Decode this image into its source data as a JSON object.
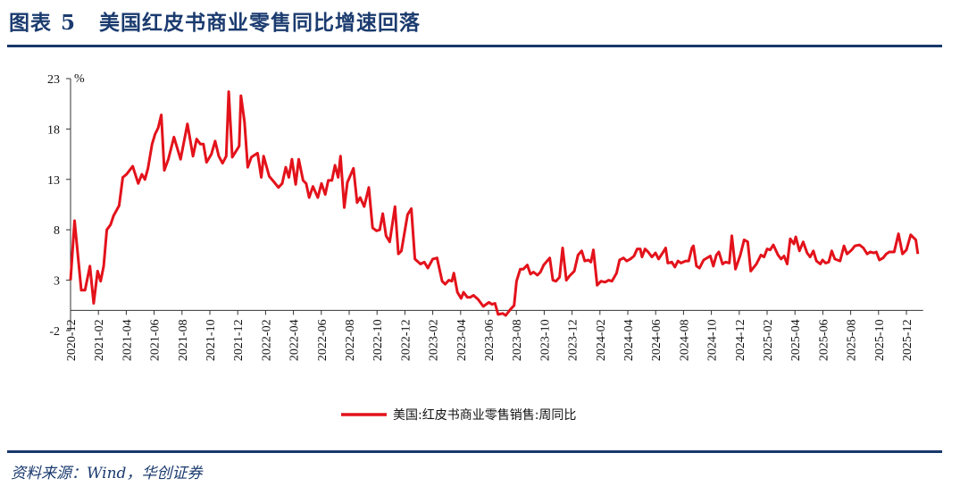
{
  "header": {
    "label": "图表",
    "number": "5",
    "title": "美国红皮书商业零售同比增速回落"
  },
  "source": "资料来源：Wind，华创证券",
  "chart_data": {
    "type": "line",
    "title": "美国红皮书商业零售同比增速回落",
    "ylabel": "%",
    "xlabel": "",
    "ylim": [
      -2,
      23
    ],
    "yticks": [
      "23",
      "18",
      "13",
      "8",
      "3",
      "-2"
    ],
    "ytick_values": [
      23,
      18,
      13,
      8,
      3,
      -2
    ],
    "xticks": [
      "2020-12",
      "2021-02",
      "2021-04",
      "2021-06",
      "2021-08",
      "2021-10",
      "2021-12",
      "2022-02",
      "2022-04",
      "2022-06",
      "2022-08",
      "2022-10",
      "2022-12",
      "2023-02",
      "2023-04",
      "2023-06",
      "2023-08",
      "2023-10",
      "2023-12",
      "2024-02",
      "2024-04",
      "2024-06",
      "2024-08",
      "2024-10",
      "2024-12",
      "2025-02",
      "2025-04",
      "2025-06",
      "2025-08",
      "2025-10",
      "2025-12"
    ],
    "x_unit": "months since 2020-12",
    "legend": "bottom",
    "color": "#e3121b",
    "series": [
      {
        "name": "美国:红皮书商业零售销售:周同比",
        "points": [
          [
            0,
            3.0
          ],
          [
            0.29,
            8.9
          ],
          [
            0.77,
            2.0
          ],
          [
            1.04,
            2.0
          ],
          [
            1.39,
            4.4
          ],
          [
            1.66,
            0.7
          ],
          [
            1.94,
            3.9
          ],
          [
            2.16,
            2.9
          ],
          [
            2.38,
            4.4
          ],
          [
            2.6,
            8.0
          ],
          [
            2.87,
            8.5
          ],
          [
            3.09,
            9.4
          ],
          [
            3.49,
            10.4
          ],
          [
            3.75,
            13.2
          ],
          [
            4.02,
            13.5
          ],
          [
            4.46,
            14.3
          ],
          [
            4.86,
            12.6
          ],
          [
            5.12,
            13.5
          ],
          [
            5.34,
            13.0
          ],
          [
            5.56,
            14.1
          ],
          [
            5.85,
            16.5
          ],
          [
            6.07,
            17.5
          ],
          [
            6.29,
            18.1
          ],
          [
            6.51,
            19.4
          ],
          [
            6.73,
            13.9
          ],
          [
            7.02,
            15.0
          ],
          [
            7.42,
            17.2
          ],
          [
            7.9,
            15.0
          ],
          [
            8.39,
            18.5
          ],
          [
            8.79,
            15.3
          ],
          [
            9.05,
            17.0
          ],
          [
            9.32,
            16.5
          ],
          [
            9.54,
            16.5
          ],
          [
            9.76,
            14.7
          ],
          [
            10.11,
            15.5
          ],
          [
            10.38,
            16.8
          ],
          [
            10.64,
            15.3
          ],
          [
            10.91,
            14.6
          ],
          [
            11.17,
            15.3
          ],
          [
            11.35,
            21.7
          ],
          [
            11.61,
            15.2
          ],
          [
            12.1,
            16.3
          ],
          [
            12.23,
            21.3
          ],
          [
            12.49,
            18.7
          ],
          [
            12.72,
            14.2
          ],
          [
            12.98,
            15.2
          ],
          [
            13.42,
            15.6
          ],
          [
            13.69,
            13.2
          ],
          [
            13.86,
            15.3
          ],
          [
            14.26,
            13.3
          ],
          [
            14.57,
            12.8
          ],
          [
            14.92,
            12.2
          ],
          [
            15.19,
            12.6
          ],
          [
            15.45,
            14.2
          ],
          [
            15.67,
            13.2
          ],
          [
            15.89,
            15.0
          ],
          [
            16.16,
            12.5
          ],
          [
            16.38,
            15.0
          ],
          [
            16.69,
            12.9
          ],
          [
            16.91,
            12.6
          ],
          [
            17.13,
            11.2
          ],
          [
            17.4,
            12.3
          ],
          [
            17.75,
            11.2
          ],
          [
            18.01,
            12.6
          ],
          [
            18.28,
            11.5
          ],
          [
            18.5,
            12.9
          ],
          [
            18.76,
            12.9
          ],
          [
            18.98,
            14.4
          ],
          [
            19.21,
            13.2
          ],
          [
            19.38,
            15.3
          ],
          [
            19.65,
            10.2
          ],
          [
            19.87,
            12.7
          ],
          [
            20.31,
            14.1
          ],
          [
            20.57,
            10.7
          ],
          [
            20.79,
            11.2
          ],
          [
            21.08,
            10.3
          ],
          [
            21.41,
            12.2
          ],
          [
            21.68,
            8.2
          ],
          [
            21.96,
            7.9
          ],
          [
            22.19,
            8.0
          ],
          [
            22.41,
            9.6
          ],
          [
            22.65,
            7.4
          ],
          [
            22.91,
            6.8
          ],
          [
            23.29,
            10.3
          ],
          [
            23.53,
            5.6
          ],
          [
            23.75,
            5.9
          ],
          [
            24.19,
            9.5
          ],
          [
            24.46,
            10.1
          ],
          [
            24.72,
            5.1
          ],
          [
            25.12,
            4.6
          ],
          [
            25.39,
            4.8
          ],
          [
            25.65,
            4.2
          ],
          [
            26.0,
            5.1
          ],
          [
            26.31,
            5.2
          ],
          [
            26.67,
            2.9
          ],
          [
            26.89,
            2.6
          ],
          [
            27.15,
            3.0
          ],
          [
            27.37,
            2.9
          ],
          [
            27.51,
            3.7
          ],
          [
            27.77,
            1.8
          ],
          [
            28.04,
            1.2
          ],
          [
            28.21,
            1.8
          ],
          [
            28.48,
            1.3
          ],
          [
            28.7,
            1.3
          ],
          [
            28.92,
            1.5
          ],
          [
            29.25,
            1.1
          ],
          [
            29.63,
            0.4
          ],
          [
            30.03,
            0.8
          ],
          [
            30.25,
            0.6
          ],
          [
            30.47,
            0.7
          ],
          [
            30.69,
            -0.4
          ],
          [
            31.02,
            -0.3
          ],
          [
            31.24,
            -0.5
          ],
          [
            31.57,
            0.1
          ],
          [
            31.84,
            0.5
          ],
          [
            32.01,
            2.9
          ],
          [
            32.28,
            4.1
          ],
          [
            32.5,
            4.1
          ],
          [
            32.79,
            4.5
          ],
          [
            33.01,
            3.6
          ],
          [
            33.23,
            3.8
          ],
          [
            33.51,
            3.5
          ],
          [
            33.73,
            3.8
          ],
          [
            33.96,
            4.5
          ],
          [
            34.4,
            5.2
          ],
          [
            34.62,
            3.0
          ],
          [
            34.84,
            2.9
          ],
          [
            35.1,
            3.3
          ],
          [
            35.32,
            6.2
          ],
          [
            35.59,
            3.0
          ],
          [
            35.81,
            3.4
          ],
          [
            36.16,
            3.9
          ],
          [
            36.43,
            5.5
          ],
          [
            36.69,
            5.9
          ],
          [
            36.91,
            4.9
          ],
          [
            37.18,
            5.0
          ],
          [
            37.35,
            4.8
          ],
          [
            37.53,
            6.0
          ],
          [
            37.8,
            2.5
          ],
          [
            38.08,
            2.9
          ],
          [
            38.37,
            2.8
          ],
          [
            38.63,
            3.0
          ],
          [
            38.86,
            2.9
          ],
          [
            39.19,
            3.7
          ],
          [
            39.41,
            5.0
          ],
          [
            39.69,
            5.2
          ],
          [
            39.92,
            4.9
          ],
          [
            40.18,
            5.1
          ],
          [
            40.45,
            5.4
          ],
          [
            40.67,
            6.1
          ],
          [
            40.89,
            6.1
          ],
          [
            41.02,
            5.3
          ],
          [
            41.24,
            6.1
          ],
          [
            41.46,
            5.8
          ],
          [
            41.73,
            5.3
          ],
          [
            41.99,
            5.7
          ],
          [
            42.21,
            5.1
          ],
          [
            42.5,
            5.7
          ],
          [
            42.72,
            6.2
          ],
          [
            42.87,
            4.7
          ],
          [
            43.16,
            4.8
          ],
          [
            43.38,
            4.3
          ],
          [
            43.6,
            4.9
          ],
          [
            43.82,
            4.7
          ],
          [
            44.15,
            4.9
          ],
          [
            44.37,
            4.9
          ],
          [
            44.6,
            6.2
          ],
          [
            44.71,
            6.4
          ],
          [
            44.93,
            4.4
          ],
          [
            45.15,
            4.2
          ],
          [
            45.44,
            5.0
          ],
          [
            45.92,
            5.4
          ],
          [
            46.14,
            4.4
          ],
          [
            46.36,
            5.5
          ],
          [
            46.54,
            5.8
          ],
          [
            46.8,
            4.6
          ],
          [
            47.02,
            4.8
          ],
          [
            47.29,
            4.7
          ],
          [
            47.47,
            7.4
          ],
          [
            47.73,
            4.1
          ],
          [
            48.08,
            5.5
          ],
          [
            48.35,
            7.0
          ],
          [
            48.61,
            6.8
          ],
          [
            48.83,
            3.9
          ],
          [
            49.23,
            4.6
          ],
          [
            49.56,
            5.5
          ],
          [
            49.78,
            5.3
          ],
          [
            50.0,
            6.1
          ],
          [
            50.22,
            6.0
          ],
          [
            50.45,
            6.5
          ],
          [
            50.78,
            5.5
          ],
          [
            51.0,
            5.1
          ],
          [
            51.22,
            5.4
          ],
          [
            51.44,
            4.6
          ],
          [
            51.66,
            7.1
          ],
          [
            51.92,
            6.6
          ],
          [
            52.06,
            7.3
          ],
          [
            52.32,
            5.9
          ],
          [
            52.59,
            6.8
          ],
          [
            52.87,
            5.7
          ],
          [
            53.09,
            5.3
          ],
          [
            53.32,
            5.9
          ],
          [
            53.54,
            4.9
          ],
          [
            53.82,
            4.6
          ],
          [
            53.98,
            5.0
          ],
          [
            54.2,
            4.7
          ],
          [
            54.42,
            4.8
          ],
          [
            54.64,
            5.9
          ],
          [
            54.86,
            5.1
          ],
          [
            55.24,
            4.9
          ],
          [
            55.52,
            6.4
          ],
          [
            55.74,
            5.6
          ],
          [
            56.07,
            6.0
          ],
          [
            56.3,
            6.4
          ],
          [
            56.63,
            6.5
          ],
          [
            56.91,
            6.2
          ],
          [
            57.18,
            5.6
          ],
          [
            57.4,
            5.8
          ],
          [
            57.66,
            5.7
          ],
          [
            57.84,
            5.8
          ],
          [
            58.06,
            5.0
          ],
          [
            58.33,
            5.2
          ],
          [
            58.55,
            5.6
          ],
          [
            58.77,
            5.8
          ],
          [
            59.12,
            5.8
          ],
          [
            59.43,
            7.6
          ],
          [
            59.72,
            5.6
          ],
          [
            60.0,
            6.0
          ],
          [
            60.31,
            7.5
          ],
          [
            60.67,
            7.0
          ],
          [
            60.82,
            5.6
          ]
        ]
      }
    ]
  }
}
